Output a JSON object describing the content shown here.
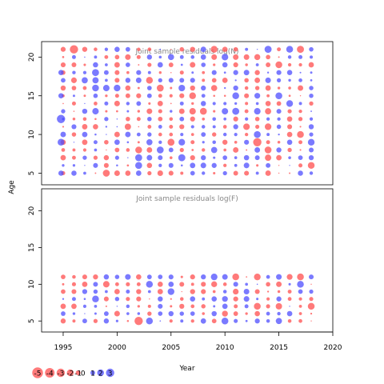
{
  "chart_data": {
    "type": "scatter",
    "subtype": "bubble",
    "xlabel": "Year",
    "ylabel": "Age",
    "x_ticks": [
      "1995",
      "2000",
      "2005",
      "2010",
      "2015",
      "2020"
    ],
    "y_ticks": [
      "5",
      "10",
      "15",
      "20"
    ],
    "xlim": [
      1993,
      2020
    ],
    "colors": {
      "negative": "#ff4d4d",
      "positive": "#4d4dff"
    },
    "legend": {
      "placement": "bottom-left",
      "entries": [
        {
          "label": "-5",
          "value": -5
        },
        {
          "label": "-4",
          "value": -4
        },
        {
          "label": "-3",
          "value": -3
        },
        {
          "label": "-2",
          "value": -2
        },
        {
          "label": "-1",
          "value": -1
        },
        {
          "label": "0",
          "value": 0
        },
        {
          "label": "1",
          "value": 1
        },
        {
          "label": "2",
          "value": 2
        },
        {
          "label": "3",
          "value": 3
        }
      ]
    },
    "panels": [
      {
        "title": "Joint sample residuals log(N)",
        "ylim": [
          3.5,
          22
        ],
        "years": [
          1995,
          2018
        ],
        "ages": [
          5,
          21
        ],
        "seed": 7,
        "highlights": [
          {
            "x": 1996,
            "y": 21,
            "value": -3
          },
          {
            "x": 1994,
            "y": 12,
            "value": 3
          },
          {
            "x": 1994,
            "y": 9,
            "value": 2
          },
          {
            "x": 2003,
            "y": 17,
            "value": -2
          },
          {
            "x": 2011,
            "y": 15,
            "value": 2
          },
          {
            "x": 2013,
            "y": 9,
            "value": -3
          },
          {
            "x": 2015,
            "y": 19,
            "value": -2
          },
          {
            "x": 2016,
            "y": 21,
            "value": 2
          },
          {
            "x": 2018,
            "y": 6,
            "value": -2
          },
          {
            "x": 2009,
            "y": 21,
            "value": -2
          },
          {
            "x": 2002,
            "y": 8,
            "value": -2
          },
          {
            "x": 2017,
            "y": 10,
            "value": -2
          }
        ]
      },
      {
        "title": "Joint sample residuals log(F)",
        "ylim": [
          3.5,
          23
        ],
        "years": [
          1995,
          2018
        ],
        "ages": [
          5,
          11
        ],
        "seed": 19,
        "highlights": [
          {
            "x": 2002,
            "y": 5,
            "value": -3
          },
          {
            "x": 2003,
            "y": 5,
            "value": 2
          },
          {
            "x": 2011,
            "y": 11,
            "value": -2
          },
          {
            "x": 2017,
            "y": 11,
            "value": -2
          },
          {
            "x": 2017,
            "y": 10,
            "value": 2
          },
          {
            "x": 2013,
            "y": 7,
            "value": -2
          },
          {
            "x": 2018,
            "y": 7,
            "value": -2
          },
          {
            "x": 2003,
            "y": 10,
            "value": 2
          }
        ]
      }
    ]
  }
}
